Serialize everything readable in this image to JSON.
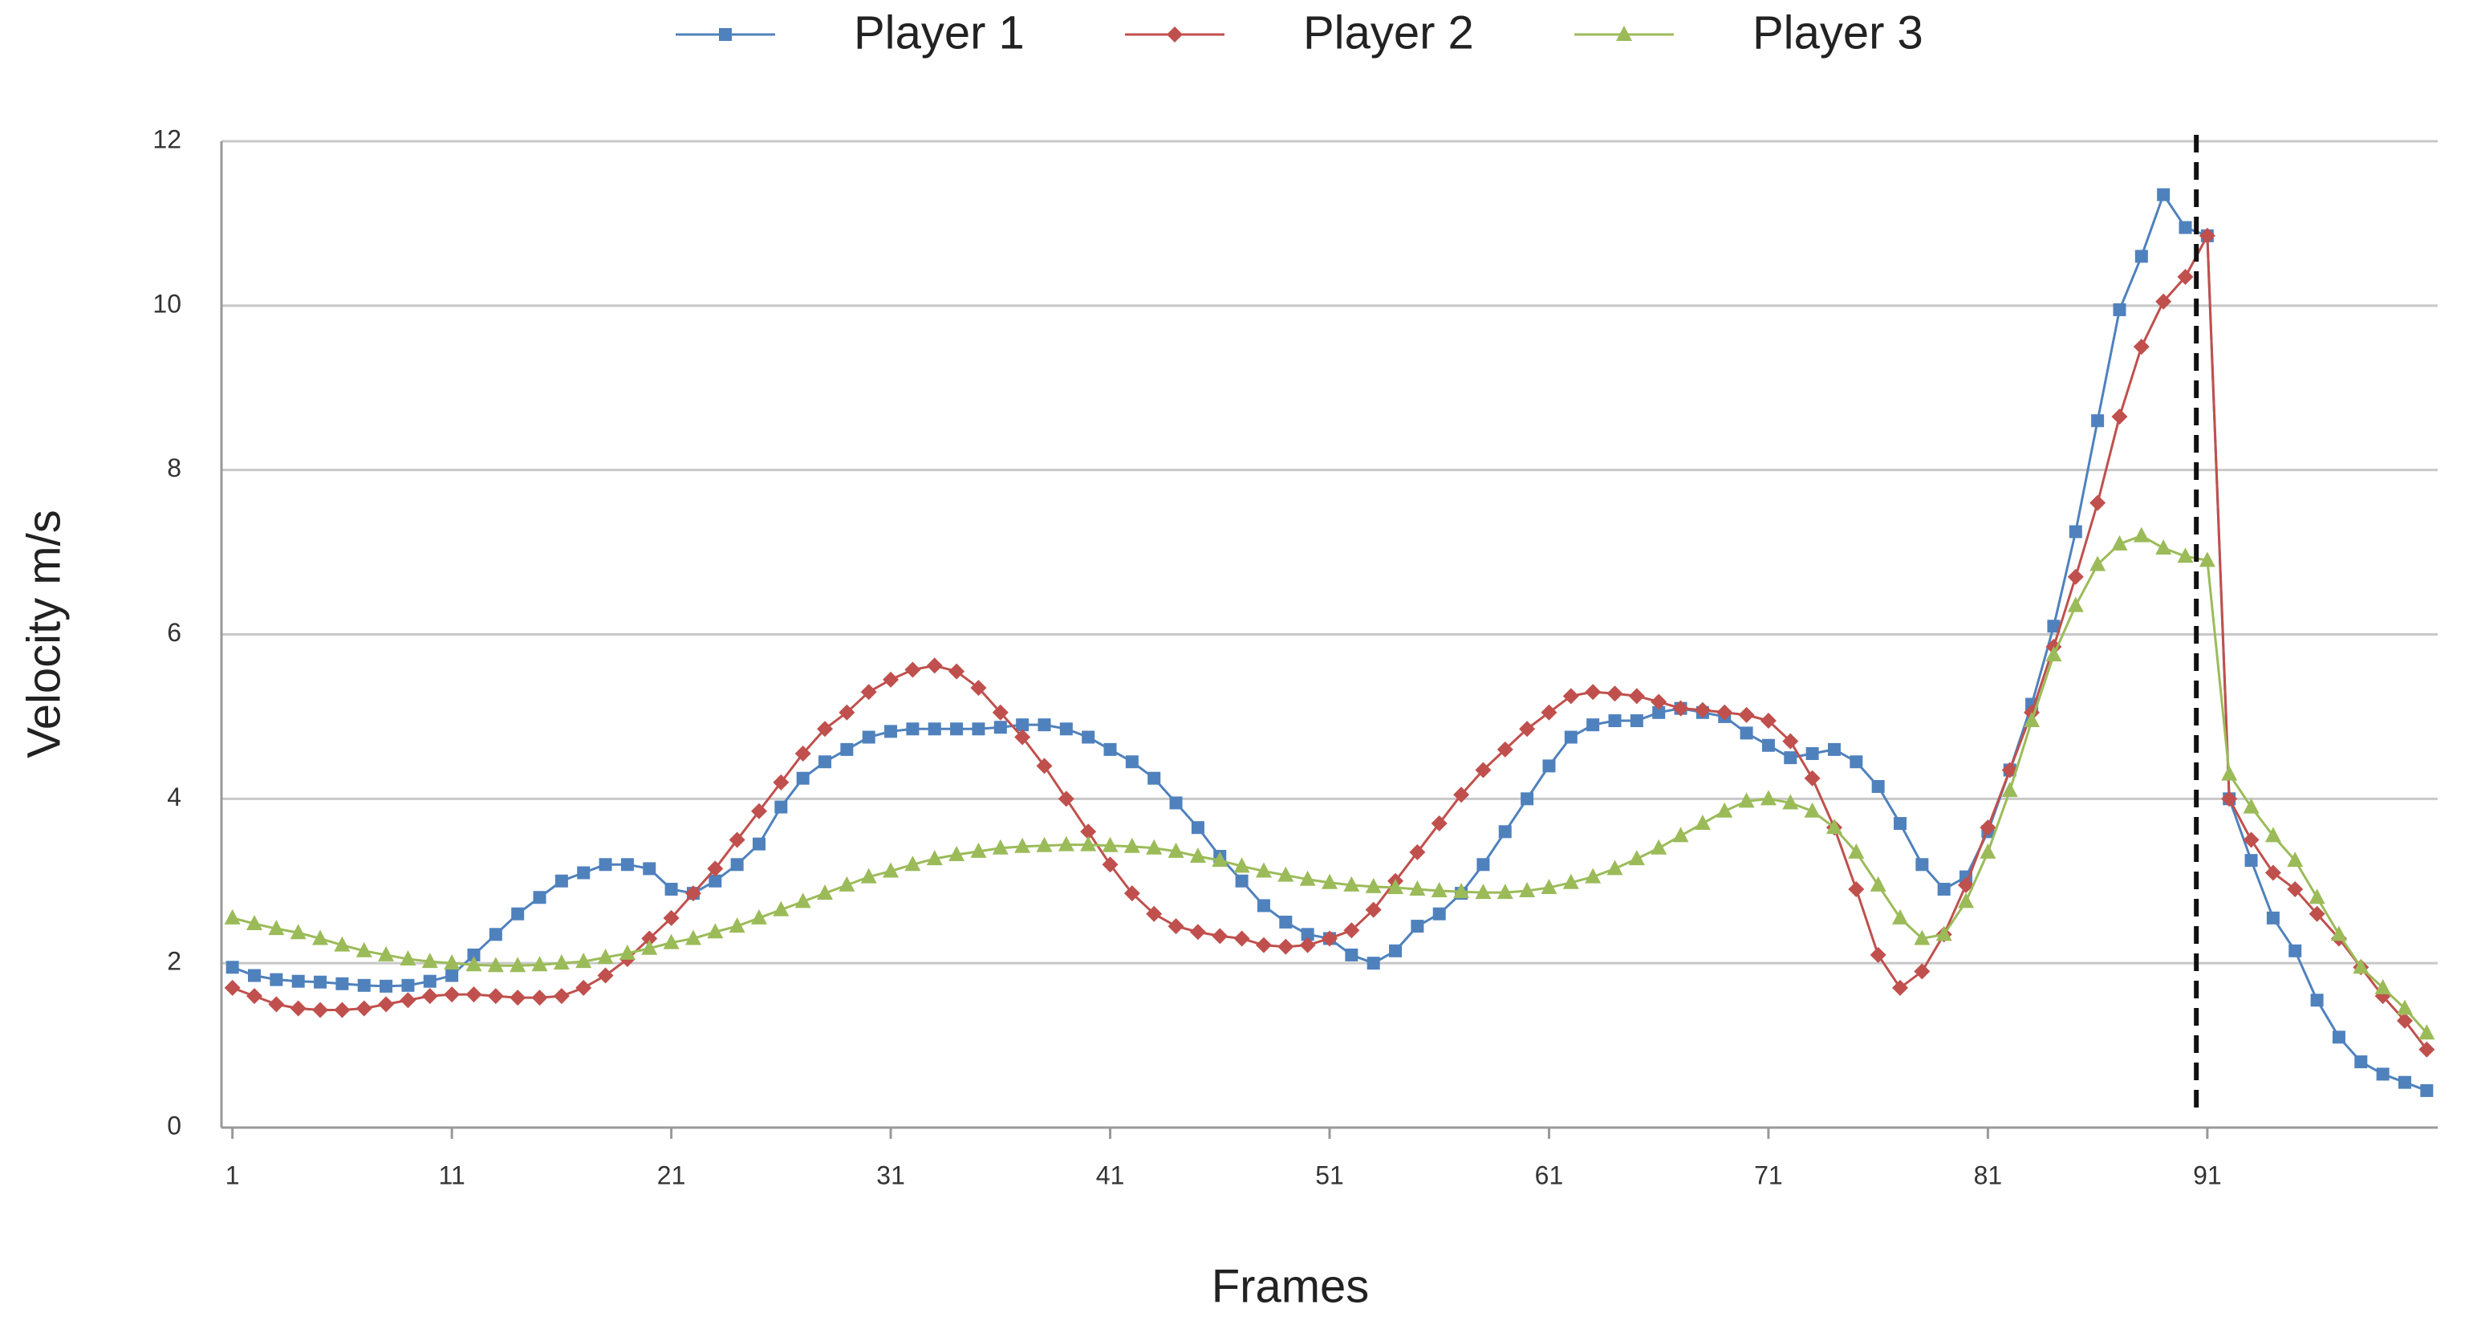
{
  "chart_data": {
    "type": "line",
    "x_label": "Frames",
    "y_label": "Velocity  m/s",
    "x": [
      1,
      2,
      3,
      4,
      5,
      6,
      7,
      8,
      9,
      10,
      11,
      12,
      13,
      14,
      15,
      16,
      17,
      18,
      19,
      20,
      21,
      22,
      23,
      24,
      25,
      26,
      27,
      28,
      29,
      30,
      31,
      32,
      33,
      34,
      35,
      36,
      37,
      38,
      39,
      40,
      41,
      42,
      43,
      44,
      45,
      46,
      47,
      48,
      49,
      50,
      51,
      52,
      53,
      54,
      55,
      56,
      57,
      58,
      59,
      60,
      61,
      62,
      63,
      64,
      65,
      66,
      67,
      68,
      69,
      70,
      71,
      72,
      73,
      74,
      75,
      76,
      77,
      78,
      79,
      80,
      81,
      82,
      83,
      84,
      85,
      86,
      87,
      88,
      89,
      90,
      91,
      92,
      93,
      94,
      95,
      96,
      97,
      98,
      99,
      100,
      101
    ],
    "series": [
      {
        "name": "Player 1",
        "color": "#4f81bd",
        "marker": "square",
        "values": [
          1.95,
          1.85,
          1.8,
          1.78,
          1.77,
          1.75,
          1.73,
          1.72,
          1.73,
          1.78,
          1.85,
          2.1,
          2.35,
          2.6,
          2.8,
          3.0,
          3.1,
          3.2,
          3.2,
          3.15,
          2.9,
          2.85,
          3.0,
          3.2,
          3.45,
          3.9,
          4.25,
          4.45,
          4.6,
          4.75,
          4.82,
          4.85,
          4.85,
          4.85,
          4.85,
          4.87,
          4.9,
          4.9,
          4.85,
          4.75,
          4.6,
          4.45,
          4.25,
          3.95,
          3.65,
          3.3,
          3.0,
          2.7,
          2.5,
          2.35,
          2.3,
          2.1,
          2.0,
          2.15,
          2.45,
          2.6,
          2.85,
          3.2,
          3.6,
          4.0,
          4.4,
          4.75,
          4.9,
          4.95,
          4.95,
          5.05,
          5.1,
          5.05,
          5.0,
          4.8,
          4.65,
          4.5,
          4.55,
          4.6,
          4.45,
          4.15,
          3.7,
          3.2,
          2.9,
          3.05,
          3.6,
          4.35,
          5.15,
          6.1,
          7.25,
          8.6,
          9.95,
          10.6,
          11.35,
          10.95,
          10.85,
          4.0,
          3.25,
          2.55,
          2.15,
          1.55,
          1.1,
          0.8,
          0.65,
          0.55,
          0.45
        ]
      },
      {
        "name": "Player 2",
        "color": "#c0504d",
        "marker": "diamond",
        "values": [
          1.7,
          1.6,
          1.5,
          1.45,
          1.43,
          1.43,
          1.45,
          1.5,
          1.55,
          1.6,
          1.62,
          1.62,
          1.6,
          1.58,
          1.58,
          1.6,
          1.7,
          1.85,
          2.05,
          2.3,
          2.55,
          2.85,
          3.15,
          3.5,
          3.85,
          4.2,
          4.55,
          4.85,
          5.05,
          5.3,
          5.45,
          5.57,
          5.62,
          5.55,
          5.35,
          5.05,
          4.75,
          4.4,
          4.0,
          3.6,
          3.2,
          2.85,
          2.6,
          2.45,
          2.38,
          2.33,
          2.3,
          2.22,
          2.2,
          2.22,
          2.3,
          2.4,
          2.65,
          3.0,
          3.35,
          3.7,
          4.05,
          4.35,
          4.6,
          4.85,
          5.05,
          5.25,
          5.3,
          5.28,
          5.25,
          5.18,
          5.1,
          5.08,
          5.05,
          5.02,
          4.95,
          4.7,
          4.25,
          3.65,
          2.9,
          2.1,
          1.7,
          1.9,
          2.35,
          2.95,
          3.65,
          4.35,
          5.05,
          5.85,
          6.7,
          7.6,
          8.65,
          9.5,
          10.05,
          10.35,
          10.85,
          4.0,
          3.5,
          3.1,
          2.9,
          2.6,
          2.3,
          1.95,
          1.6,
          1.3,
          0.95
        ]
      },
      {
        "name": "Player 3",
        "color": "#9bbb59",
        "marker": "triangle",
        "values": [
          2.55,
          2.48,
          2.42,
          2.37,
          2.3,
          2.22,
          2.15,
          2.1,
          2.05,
          2.02,
          2.0,
          1.98,
          1.97,
          1.97,
          1.98,
          2.0,
          2.02,
          2.07,
          2.12,
          2.18,
          2.25,
          2.3,
          2.38,
          2.45,
          2.55,
          2.65,
          2.75,
          2.85,
          2.95,
          3.05,
          3.12,
          3.2,
          3.27,
          3.32,
          3.36,
          3.4,
          3.42,
          3.43,
          3.44,
          3.44,
          3.43,
          3.42,
          3.4,
          3.36,
          3.3,
          3.25,
          3.18,
          3.12,
          3.07,
          3.02,
          2.98,
          2.95,
          2.93,
          2.92,
          2.9,
          2.88,
          2.87,
          2.86,
          2.86,
          2.88,
          2.92,
          2.98,
          3.05,
          3.15,
          3.27,
          3.4,
          3.55,
          3.7,
          3.85,
          3.97,
          4.0,
          3.95,
          3.85,
          3.65,
          3.35,
          2.95,
          2.55,
          2.3,
          2.35,
          2.75,
          3.35,
          4.1,
          4.95,
          5.75,
          6.35,
          6.85,
          7.1,
          7.2,
          7.05,
          6.95,
          6.9,
          4.3,
          3.9,
          3.55,
          3.25,
          2.8,
          2.35,
          1.95,
          1.7,
          1.45,
          1.15
        ]
      }
    ],
    "xlim": [
      0.5,
      101.5
    ],
    "xticks": [
      1,
      11,
      21,
      31,
      41,
      51,
      61,
      71,
      81,
      91
    ],
    "ylim": [
      0,
      12
    ],
    "yticks": [
      0,
      2,
      4,
      6,
      8,
      10,
      12
    ],
    "grid": true,
    "legend": "top",
    "reference_x": 90.5
  }
}
